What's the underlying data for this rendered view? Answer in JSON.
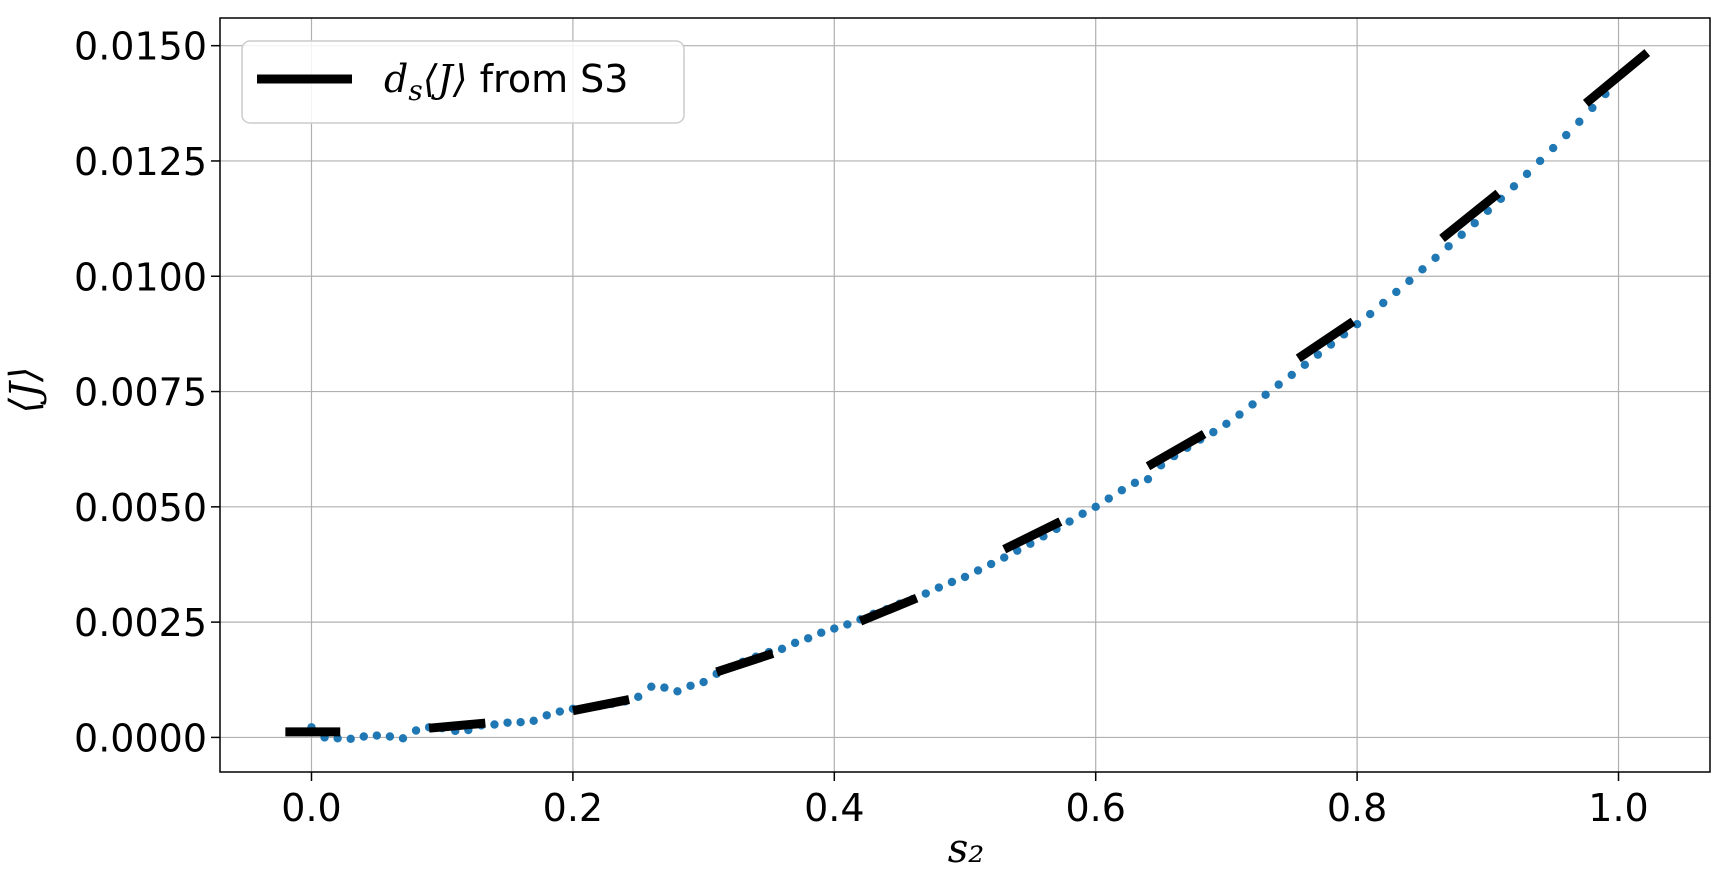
{
  "chart_data": {
    "type": "scatter",
    "xlabel": "s₂",
    "ylabel": "⟨J⟩",
    "xlim": [
      -0.07,
      1.07
    ],
    "ylim": [
      -0.00075,
      0.0156
    ],
    "xticks": [
      0.0,
      0.2,
      0.4,
      0.6,
      0.8,
      1.0
    ],
    "xtick_labels": [
      "0.0",
      "0.2",
      "0.4",
      "0.6",
      "0.8",
      "1.0"
    ],
    "yticks": [
      0.0,
      0.0025,
      0.005,
      0.0075,
      0.01,
      0.0125,
      0.015
    ],
    "ytick_labels": [
      "0.0000",
      "0.0025",
      "0.0050",
      "0.0075",
      "0.0100",
      "0.0125",
      "0.0150"
    ],
    "grid": true,
    "legend": {
      "placement": "top-left",
      "label_prefix": "d",
      "label_sub": "s",
      "label_angle": "⟨J⟩",
      "label_rest": " from S3"
    },
    "series": [
      {
        "kind": "dots",
        "color": "#1f77b4",
        "x": [
          0.0,
          0.01,
          0.02,
          0.03,
          0.04,
          0.05,
          0.06,
          0.07,
          0.08,
          0.09,
          0.1,
          0.11,
          0.12,
          0.13,
          0.14,
          0.15,
          0.16,
          0.17,
          0.18,
          0.19,
          0.2,
          0.21,
          0.22,
          0.23,
          0.24,
          0.25,
          0.26,
          0.27,
          0.28,
          0.29,
          0.3,
          0.31,
          0.32,
          0.33,
          0.34,
          0.35,
          0.36,
          0.37,
          0.38,
          0.39,
          0.4,
          0.41,
          0.42,
          0.43,
          0.44,
          0.45,
          0.46,
          0.47,
          0.48,
          0.49,
          0.5,
          0.51,
          0.52,
          0.53,
          0.54,
          0.55,
          0.56,
          0.57,
          0.58,
          0.59,
          0.6,
          0.61,
          0.62,
          0.63,
          0.64,
          0.65,
          0.66,
          0.67,
          0.68,
          0.69,
          0.7,
          0.71,
          0.72,
          0.73,
          0.74,
          0.75,
          0.76,
          0.77,
          0.78,
          0.79,
          0.8,
          0.81,
          0.82,
          0.83,
          0.84,
          0.85,
          0.86,
          0.87,
          0.88,
          0.89,
          0.9,
          0.91,
          0.92,
          0.93,
          0.94,
          0.95,
          0.96,
          0.97,
          0.98,
          0.99
        ],
        "y": [
          0.00022,
          0.0,
          -2e-05,
          -3e-05,
          2e-05,
          4e-05,
          2e-05,
          -2e-05,
          0.00015,
          0.00022,
          0.0002,
          0.00014,
          0.00016,
          0.00026,
          0.00028,
          0.00032,
          0.00033,
          0.00036,
          0.00048,
          0.00056,
          0.00062,
          0.00064,
          0.00068,
          0.00073,
          0.00078,
          0.00088,
          0.0011,
          0.00108,
          0.001,
          0.00112,
          0.0012,
          0.00138,
          0.00152,
          0.00164,
          0.00175,
          0.00185,
          0.00192,
          0.00205,
          0.00215,
          0.00227,
          0.00236,
          0.00245,
          0.00256,
          0.00268,
          0.00278,
          0.0029,
          0.003,
          0.00312,
          0.00325,
          0.00337,
          0.00348,
          0.00362,
          0.00376,
          0.0039,
          0.00405,
          0.0042,
          0.00436,
          0.00452,
          0.00468,
          0.00485,
          0.005,
          0.00518,
          0.00536,
          0.00552,
          0.0056,
          0.0059,
          0.0061,
          0.00628,
          0.00646,
          0.00662,
          0.0068,
          0.007,
          0.00722,
          0.00743,
          0.00765,
          0.00786,
          0.00808,
          0.0083,
          0.00852,
          0.00874,
          0.00896,
          0.00918,
          0.00942,
          0.00966,
          0.0099,
          0.01015,
          0.0104,
          0.01065,
          0.0109,
          0.01115,
          0.01142,
          0.01168,
          0.01195,
          0.01222,
          0.0125,
          0.01278,
          0.01306,
          0.01335,
          0.01365,
          0.01395
        ]
      },
      {
        "kind": "dashed-segments",
        "color": "#000000",
        "segments": [
          [
            [
              -0.02,
              0.00012
            ],
            [
              0.022,
              0.00012
            ]
          ],
          [
            [
              0.09,
              0.0002
            ],
            [
              0.133,
              0.00031
            ]
          ],
          [
            [
              0.2,
              0.00058
            ],
            [
              0.243,
              0.00082
            ]
          ],
          [
            [
              0.31,
              0.00142
            ],
            [
              0.353,
              0.00182
            ]
          ],
          [
            [
              0.42,
              0.00252
            ],
            [
              0.463,
              0.00302
            ]
          ],
          [
            [
              0.53,
              0.00408
            ],
            [
              0.573,
              0.00468
            ]
          ],
          [
            [
              0.64,
              0.00588
            ],
            [
              0.683,
              0.00658
            ]
          ],
          [
            [
              0.755,
              0.00822
            ],
            [
              0.797,
              0.00902
            ]
          ],
          [
            [
              0.865,
              0.01082
            ],
            [
              0.908,
              0.0118
            ]
          ],
          [
            [
              0.975,
              0.01375
            ],
            [
              1.022,
              0.01485
            ]
          ]
        ]
      }
    ]
  }
}
